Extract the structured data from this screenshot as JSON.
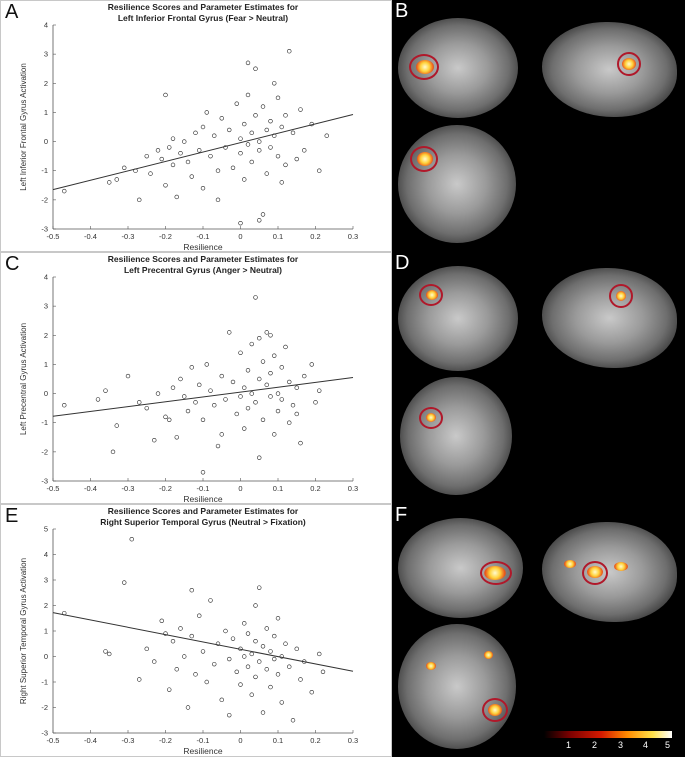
{
  "panels": {
    "A": "A",
    "B": "B",
    "C": "C",
    "D": "D",
    "E": "E",
    "F": "F"
  },
  "colorbar": {
    "ticks": [
      "1",
      "2",
      "3",
      "4",
      "5"
    ]
  },
  "chart_data": [
    {
      "type": "scatter",
      "title": "Resilience Scores and Parameter Estimates for",
      "subtitle": "Left Inferior Frontal Gyrus (Fear > Neutral)",
      "xlabel": "Resilience",
      "ylabel": "Left Inferior Frontal Gyrus Activation",
      "xlim": [
        -0.5,
        0.3
      ],
      "ylim": [
        -3,
        4
      ],
      "xticks": [
        "-0.5",
        "-0.4",
        "-0.3",
        "-0.2",
        "-0.1",
        "0",
        "0.1",
        "0.2",
        "0.3"
      ],
      "yticks": [
        "-3",
        "-2",
        "-1",
        "0",
        "1",
        "2",
        "3",
        "4"
      ],
      "fit": {
        "x": [
          -0.5,
          0.3
        ],
        "y": [
          -1.65,
          0.93
        ]
      },
      "points": [
        [
          -0.47,
          -1.7
        ],
        [
          -0.35,
          -1.4
        ],
        [
          -0.33,
          -1.3
        ],
        [
          -0.31,
          -0.9
        ],
        [
          -0.28,
          -1.0
        ],
        [
          -0.27,
          -2.0
        ],
        [
          -0.25,
          -0.5
        ],
        [
          -0.24,
          -1.1
        ],
        [
          -0.22,
          -0.3
        ],
        [
          -0.21,
          -0.6
        ],
        [
          -0.2,
          -1.5
        ],
        [
          -0.19,
          -0.2
        ],
        [
          -0.18,
          0.1
        ],
        [
          -0.18,
          -0.8
        ],
        [
          -0.17,
          -1.9
        ],
        [
          -0.16,
          -0.4
        ],
        [
          -0.15,
          0.0
        ],
        [
          -0.14,
          -0.7
        ],
        [
          -0.13,
          -1.2
        ],
        [
          -0.12,
          0.3
        ],
        [
          -0.11,
          -0.3
        ],
        [
          -0.1,
          0.5
        ],
        [
          -0.1,
          -1.6
        ],
        [
          -0.09,
          1.0
        ],
        [
          -0.08,
          -0.5
        ],
        [
          -0.07,
          0.2
        ],
        [
          -0.06,
          -1.0
        ],
        [
          -0.05,
          0.8
        ],
        [
          -0.04,
          -0.2
        ],
        [
          -0.03,
          0.4
        ],
        [
          -0.02,
          -0.9
        ],
        [
          -0.01,
          1.3
        ],
        [
          0.0,
          0.1
        ],
        [
          0.0,
          -0.4
        ],
        [
          0.01,
          0.6
        ],
        [
          0.01,
          -1.3
        ],
        [
          0.02,
          1.6
        ],
        [
          0.02,
          -0.1
        ],
        [
          0.03,
          0.3
        ],
        [
          0.03,
          -0.7
        ],
        [
          0.04,
          2.5
        ],
        [
          0.04,
          0.9
        ],
        [
          0.05,
          0.0
        ],
        [
          0.05,
          -0.3
        ],
        [
          0.06,
          1.2
        ],
        [
          0.06,
          -2.5
        ],
        [
          0.07,
          0.4
        ],
        [
          0.07,
          -1.1
        ],
        [
          0.08,
          0.7
        ],
        [
          0.08,
          -0.2
        ],
        [
          0.09,
          2.0
        ],
        [
          0.09,
          0.2
        ],
        [
          0.1,
          -0.5
        ],
        [
          0.1,
          1.5
        ],
        [
          0.11,
          0.5
        ],
        [
          0.11,
          -1.4
        ],
        [
          0.12,
          0.9
        ],
        [
          0.12,
          -0.8
        ],
        [
          0.13,
          3.1
        ],
        [
          0.14,
          0.3
        ],
        [
          0.15,
          -0.6
        ],
        [
          0.16,
          1.1
        ],
        [
          0.17,
          -0.3
        ],
        [
          0.19,
          0.6
        ],
        [
          0.21,
          -1.0
        ],
        [
          0.23,
          0.2
        ],
        [
          -0.2,
          1.6
        ],
        [
          -0.06,
          -2.0
        ],
        [
          0.0,
          -2.8
        ],
        [
          0.05,
          -2.7
        ],
        [
          0.02,
          2.7
        ]
      ]
    },
    {
      "type": "scatter",
      "title": "Resilience Scores and Parameter Estimates for",
      "subtitle": "Left Precentral Gyrus (Anger > Neutral)",
      "xlabel": "Resilience",
      "ylabel": "Left Precentral Gyrus Activation",
      "xlim": [
        -0.5,
        0.3
      ],
      "ylim": [
        -3,
        4
      ],
      "xticks": [
        "-0.5",
        "-0.4",
        "-0.3",
        "-0.2",
        "-0.1",
        "0",
        "0.1",
        "0.2",
        "0.3"
      ],
      "yticks": [
        "-3",
        "-2",
        "-1",
        "0",
        "1",
        "2",
        "3",
        "4"
      ],
      "fit": {
        "x": [
          -0.5,
          0.3
        ],
        "y": [
          -0.78,
          0.55
        ]
      },
      "points": [
        [
          -0.47,
          -0.4
        ],
        [
          -0.38,
          -0.2
        ],
        [
          -0.36,
          0.1
        ],
        [
          -0.34,
          -2.0
        ],
        [
          -0.33,
          -1.1
        ],
        [
          -0.3,
          0.6
        ],
        [
          -0.27,
          -0.3
        ],
        [
          -0.25,
          -0.5
        ],
        [
          -0.23,
          -1.6
        ],
        [
          -0.22,
          0.0
        ],
        [
          -0.2,
          -0.8
        ],
        [
          -0.19,
          -0.9
        ],
        [
          -0.18,
          0.2
        ],
        [
          -0.17,
          -1.5
        ],
        [
          -0.16,
          0.5
        ],
        [
          -0.15,
          -0.1
        ],
        [
          -0.14,
          -0.6
        ],
        [
          -0.13,
          0.9
        ],
        [
          -0.12,
          -0.3
        ],
        [
          -0.11,
          0.3
        ],
        [
          -0.1,
          -2.7
        ],
        [
          -0.1,
          -0.9
        ],
        [
          -0.09,
          1.0
        ],
        [
          -0.08,
          0.1
        ],
        [
          -0.07,
          -0.4
        ],
        [
          -0.06,
          -1.8
        ],
        [
          -0.05,
          0.6
        ],
        [
          -0.04,
          -0.2
        ],
        [
          -0.03,
          2.1
        ],
        [
          -0.02,
          0.4
        ],
        [
          -0.01,
          -0.7
        ],
        [
          0.0,
          1.4
        ],
        [
          0.0,
          -0.1
        ],
        [
          0.01,
          0.2
        ],
        [
          0.01,
          -1.2
        ],
        [
          0.02,
          0.8
        ],
        [
          0.02,
          -0.5
        ],
        [
          0.03,
          0.0
        ],
        [
          0.03,
          1.7
        ],
        [
          0.04,
          -0.3
        ],
        [
          0.04,
          3.3
        ],
        [
          0.05,
          0.5
        ],
        [
          0.05,
          -2.2
        ],
        [
          0.06,
          1.1
        ],
        [
          0.06,
          -0.9
        ],
        [
          0.07,
          0.3
        ],
        [
          0.07,
          2.1
        ],
        [
          0.08,
          -0.1
        ],
        [
          0.08,
          0.7
        ],
        [
          0.09,
          -1.4
        ],
        [
          0.09,
          1.3
        ],
        [
          0.1,
          0.0
        ],
        [
          0.1,
          -0.6
        ],
        [
          0.11,
          0.9
        ],
        [
          0.11,
          -0.2
        ],
        [
          0.12,
          1.6
        ],
        [
          0.13,
          -1.0
        ],
        [
          0.13,
          0.4
        ],
        [
          0.14,
          -0.4
        ],
        [
          0.15,
          0.2
        ],
        [
          0.16,
          -1.7
        ],
        [
          0.17,
          0.6
        ],
        [
          0.19,
          1.0
        ],
        [
          0.2,
          -0.3
        ],
        [
          0.21,
          0.1
        ],
        [
          0.15,
          -0.7
        ],
        [
          0.05,
          1.9
        ],
        [
          -0.05,
          -1.4
        ],
        [
          0.08,
          2.0
        ]
      ]
    },
    {
      "type": "scatter",
      "title": "Resilience Scores and Parameter Estimates for",
      "subtitle": "Right Superior Temporal Gyrus (Neutral > Fixation)",
      "xlabel": "Resilience",
      "ylabel": "Right Superior Temporal Gyrus Activation",
      "xlim": [
        -0.5,
        0.3
      ],
      "ylim": [
        -3,
        5
      ],
      "xticks": [
        "-0.5",
        "-0.4",
        "-0.3",
        "-0.2",
        "-0.1",
        "0",
        "0.1",
        "0.2",
        "0.3"
      ],
      "yticks": [
        "-3",
        "-2",
        "-1",
        "0",
        "1",
        "2",
        "3",
        "4",
        "5"
      ],
      "fit": {
        "x": [
          -0.5,
          0.3
        ],
        "y": [
          1.72,
          -0.58
        ]
      },
      "points": [
        [
          -0.47,
          1.7
        ],
        [
          -0.36,
          0.2
        ],
        [
          -0.35,
          0.1
        ],
        [
          -0.31,
          2.9
        ],
        [
          -0.29,
          4.6
        ],
        [
          -0.27,
          -0.9
        ],
        [
          -0.25,
          0.3
        ],
        [
          -0.23,
          -0.2
        ],
        [
          -0.21,
          1.4
        ],
        [
          -0.2,
          0.9
        ],
        [
          -0.19,
          -1.3
        ],
        [
          -0.18,
          0.6
        ],
        [
          -0.17,
          -0.5
        ],
        [
          -0.16,
          1.1
        ],
        [
          -0.15,
          0.0
        ],
        [
          -0.14,
          -2.0
        ],
        [
          -0.13,
          0.8
        ],
        [
          -0.12,
          -0.7
        ],
        [
          -0.11,
          1.6
        ],
        [
          -0.1,
          0.2
        ],
        [
          -0.09,
          -1.0
        ],
        [
          -0.08,
          2.2
        ],
        [
          -0.07,
          -0.3
        ],
        [
          -0.06,
          0.5
        ],
        [
          -0.05,
          -1.7
        ],
        [
          -0.04,
          1.0
        ],
        [
          -0.03,
          -0.1
        ],
        [
          -0.02,
          0.7
        ],
        [
          -0.01,
          -0.6
        ],
        [
          0.0,
          0.3
        ],
        [
          0.0,
          -1.1
        ],
        [
          0.01,
          1.3
        ],
        [
          0.01,
          0.0
        ],
        [
          0.02,
          -0.4
        ],
        [
          0.02,
          0.9
        ],
        [
          0.03,
          -1.5
        ],
        [
          0.03,
          0.1
        ],
        [
          0.04,
          0.6
        ],
        [
          0.04,
          -0.8
        ],
        [
          0.05,
          2.7
        ],
        [
          0.05,
          -0.2
        ],
        [
          0.06,
          0.4
        ],
        [
          0.06,
          -2.2
        ],
        [
          0.07,
          1.1
        ],
        [
          0.07,
          -0.5
        ],
        [
          0.08,
          0.2
        ],
        [
          0.08,
          -1.2
        ],
        [
          0.09,
          0.8
        ],
        [
          0.09,
          -0.1
        ],
        [
          0.1,
          -0.7
        ],
        [
          0.1,
          1.5
        ],
        [
          0.11,
          0.0
        ],
        [
          0.11,
          -1.8
        ],
        [
          0.12,
          0.5
        ],
        [
          0.13,
          -0.4
        ],
        [
          0.14,
          -2.5
        ],
        [
          0.15,
          0.3
        ],
        [
          0.16,
          -0.9
        ],
        [
          0.17,
          -0.2
        ],
        [
          0.19,
          -1.4
        ],
        [
          0.21,
          0.1
        ],
        [
          0.22,
          -0.6
        ],
        [
          -0.03,
          -2.3
        ],
        [
          0.04,
          2.0
        ],
        [
          -0.13,
          2.6
        ]
      ]
    }
  ]
}
